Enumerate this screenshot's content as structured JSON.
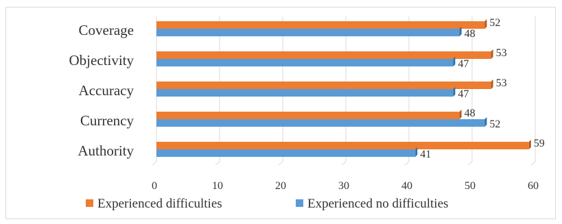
{
  "colors": {
    "experienced": "#ED7D31",
    "no_difficulties": "#5B9BD5",
    "grid": "#d9d9d9"
  },
  "chart_data": {
    "type": "bar",
    "orientation": "horizontal",
    "title": "",
    "xlabel": "",
    "ylabel": "",
    "xlim": [
      0,
      60
    ],
    "ticks": [
      0,
      10,
      20,
      30,
      40,
      50,
      60
    ],
    "grid": true,
    "legend_position": "bottom",
    "categories": [
      "Coverage",
      "Objectivity",
      "Accuracy",
      "Currency",
      "Authority"
    ],
    "series": [
      {
        "name": "Experienced difficulties",
        "values": [
          52,
          53,
          53,
          48,
          59
        ]
      },
      {
        "name": "Experienced no difficulties",
        "values": [
          48,
          47,
          47,
          52,
          41
        ]
      }
    ]
  }
}
